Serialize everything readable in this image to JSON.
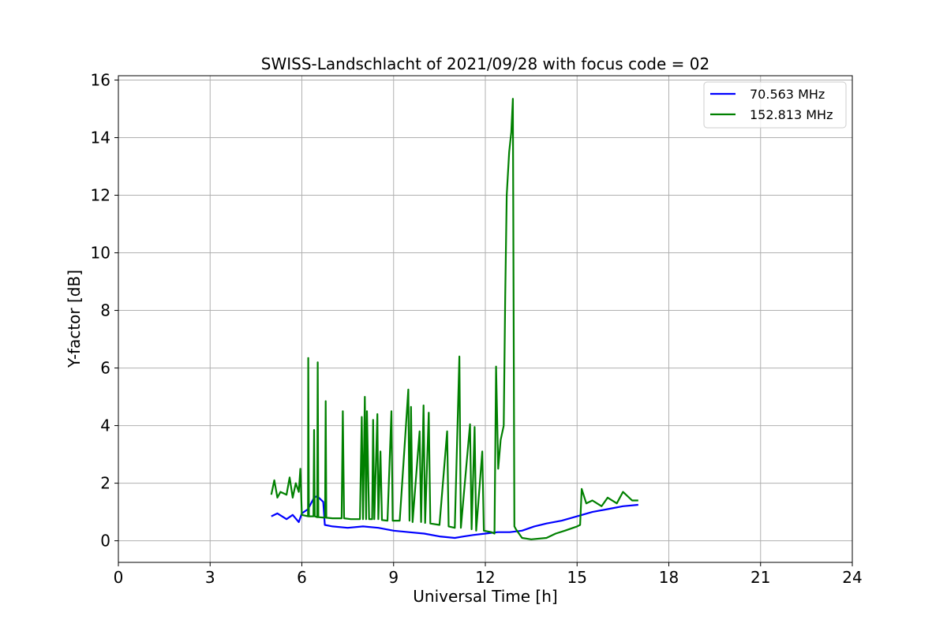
{
  "chart_data": {
    "type": "line",
    "title": "SWISS-Landschlacht of 2021/09/28 with focus code = 02",
    "xlabel": "Universal Time [h]",
    "ylabel": "Y-factor [dB]",
    "xlim": [
      0,
      24
    ],
    "ylim": [
      -0.75,
      16.15
    ],
    "xticks": [
      0,
      3,
      6,
      9,
      12,
      15,
      18,
      21,
      24
    ],
    "yticks": [
      0,
      2,
      4,
      6,
      8,
      10,
      12,
      14,
      16
    ],
    "grid": true,
    "legend_position": "top-right",
    "series": [
      {
        "name": " 70.563 MHz",
        "color": "#0000ff",
        "points": [
          [
            5.0,
            0.85
          ],
          [
            5.2,
            0.95
          ],
          [
            5.5,
            0.75
          ],
          [
            5.7,
            0.9
          ],
          [
            5.9,
            0.65
          ],
          [
            6.0,
            0.95
          ],
          [
            6.2,
            1.1
          ],
          [
            6.4,
            1.5
          ],
          [
            6.5,
            1.55
          ],
          [
            6.6,
            1.45
          ],
          [
            6.7,
            1.35
          ],
          [
            6.75,
            0.55
          ],
          [
            7.0,
            0.5
          ],
          [
            7.5,
            0.45
          ],
          [
            8.0,
            0.5
          ],
          [
            8.5,
            0.45
          ],
          [
            9.0,
            0.35
          ],
          [
            9.5,
            0.3
          ],
          [
            10.0,
            0.25
          ],
          [
            10.5,
            0.15
          ],
          [
            11.0,
            0.1
          ],
          [
            11.3,
            0.15
          ],
          [
            11.6,
            0.2
          ],
          [
            12.0,
            0.25
          ],
          [
            12.4,
            0.3
          ],
          [
            12.8,
            0.3
          ],
          [
            13.2,
            0.35
          ],
          [
            13.6,
            0.5
          ],
          [
            14.0,
            0.6
          ],
          [
            14.5,
            0.7
          ],
          [
            15.0,
            0.85
          ],
          [
            15.5,
            1.0
          ],
          [
            16.0,
            1.1
          ],
          [
            16.5,
            1.2
          ],
          [
            17.0,
            1.25
          ]
        ]
      },
      {
        "name": "152.813 MHz",
        "color": "#008000",
        "points": [
          [
            5.0,
            1.6
          ],
          [
            5.1,
            2.1
          ],
          [
            5.2,
            1.5
          ],
          [
            5.3,
            1.7
          ],
          [
            5.5,
            1.6
          ],
          [
            5.6,
            2.2
          ],
          [
            5.7,
            1.5
          ],
          [
            5.8,
            2.0
          ],
          [
            5.9,
            1.7
          ],
          [
            5.95,
            2.5
          ],
          [
            6.0,
            0.9
          ],
          [
            6.2,
            0.85
          ],
          [
            6.21,
            6.35
          ],
          [
            6.23,
            0.85
          ],
          [
            6.38,
            0.85
          ],
          [
            6.4,
            3.85
          ],
          [
            6.42,
            0.85
          ],
          [
            6.5,
            0.82
          ],
          [
            6.52,
            6.2
          ],
          [
            6.54,
            0.82
          ],
          [
            6.76,
            0.8
          ],
          [
            6.78,
            4.85
          ],
          [
            6.8,
            0.8
          ],
          [
            7.0,
            0.78
          ],
          [
            7.3,
            0.78
          ],
          [
            7.34,
            4.5
          ],
          [
            7.38,
            0.78
          ],
          [
            7.6,
            0.75
          ],
          [
            7.9,
            0.75
          ],
          [
            7.96,
            4.3
          ],
          [
            8.0,
            0.75
          ],
          [
            8.06,
            5.0
          ],
          [
            8.1,
            0.75
          ],
          [
            8.13,
            4.5
          ],
          [
            8.2,
            0.75
          ],
          [
            8.3,
            0.75
          ],
          [
            8.33,
            4.2
          ],
          [
            8.37,
            0.75
          ],
          [
            8.47,
            4.4
          ],
          [
            8.5,
            0.75
          ],
          [
            8.57,
            3.1
          ],
          [
            8.62,
            0.72
          ],
          [
            8.8,
            0.7
          ],
          [
            8.93,
            4.5
          ],
          [
            8.97,
            0.7
          ],
          [
            9.2,
            0.7
          ],
          [
            9.48,
            5.25
          ],
          [
            9.52,
            0.7
          ],
          [
            9.57,
            4.65
          ],
          [
            9.62,
            0.65
          ],
          [
            9.85,
            3.8
          ],
          [
            9.9,
            0.65
          ],
          [
            9.98,
            4.7
          ],
          [
            10.03,
            0.62
          ],
          [
            10.15,
            4.45
          ],
          [
            10.2,
            0.6
          ],
          [
            10.5,
            0.55
          ],
          [
            10.75,
            3.8
          ],
          [
            10.8,
            0.5
          ],
          [
            11.0,
            0.45
          ],
          [
            11.15,
            6.4
          ],
          [
            11.2,
            0.45
          ],
          [
            11.5,
            4.05
          ],
          [
            11.55,
            0.4
          ],
          [
            11.65,
            3.95
          ],
          [
            11.7,
            0.35
          ],
          [
            11.9,
            3.1
          ],
          [
            11.95,
            0.35
          ],
          [
            12.2,
            0.3
          ],
          [
            12.3,
            0.25
          ],
          [
            12.35,
            6.05
          ],
          [
            12.42,
            2.5
          ],
          [
            12.5,
            3.5
          ],
          [
            12.6,
            4.0
          ],
          [
            12.65,
            8.5
          ],
          [
            12.7,
            12.0
          ],
          [
            12.78,
            13.5
          ],
          [
            12.85,
            14.2
          ],
          [
            12.9,
            15.35
          ],
          [
            12.95,
            0.5
          ],
          [
            13.0,
            0.4
          ],
          [
            13.2,
            0.1
          ],
          [
            13.5,
            0.05
          ],
          [
            14.0,
            0.1
          ],
          [
            14.3,
            0.25
          ],
          [
            14.6,
            0.35
          ],
          [
            15.0,
            0.5
          ],
          [
            15.1,
            0.55
          ],
          [
            15.15,
            1.8
          ],
          [
            15.3,
            1.3
          ],
          [
            15.5,
            1.4
          ],
          [
            15.8,
            1.2
          ],
          [
            16.0,
            1.5
          ],
          [
            16.3,
            1.3
          ],
          [
            16.5,
            1.7
          ],
          [
            16.8,
            1.4
          ],
          [
            17.0,
            1.4
          ]
        ]
      }
    ]
  }
}
